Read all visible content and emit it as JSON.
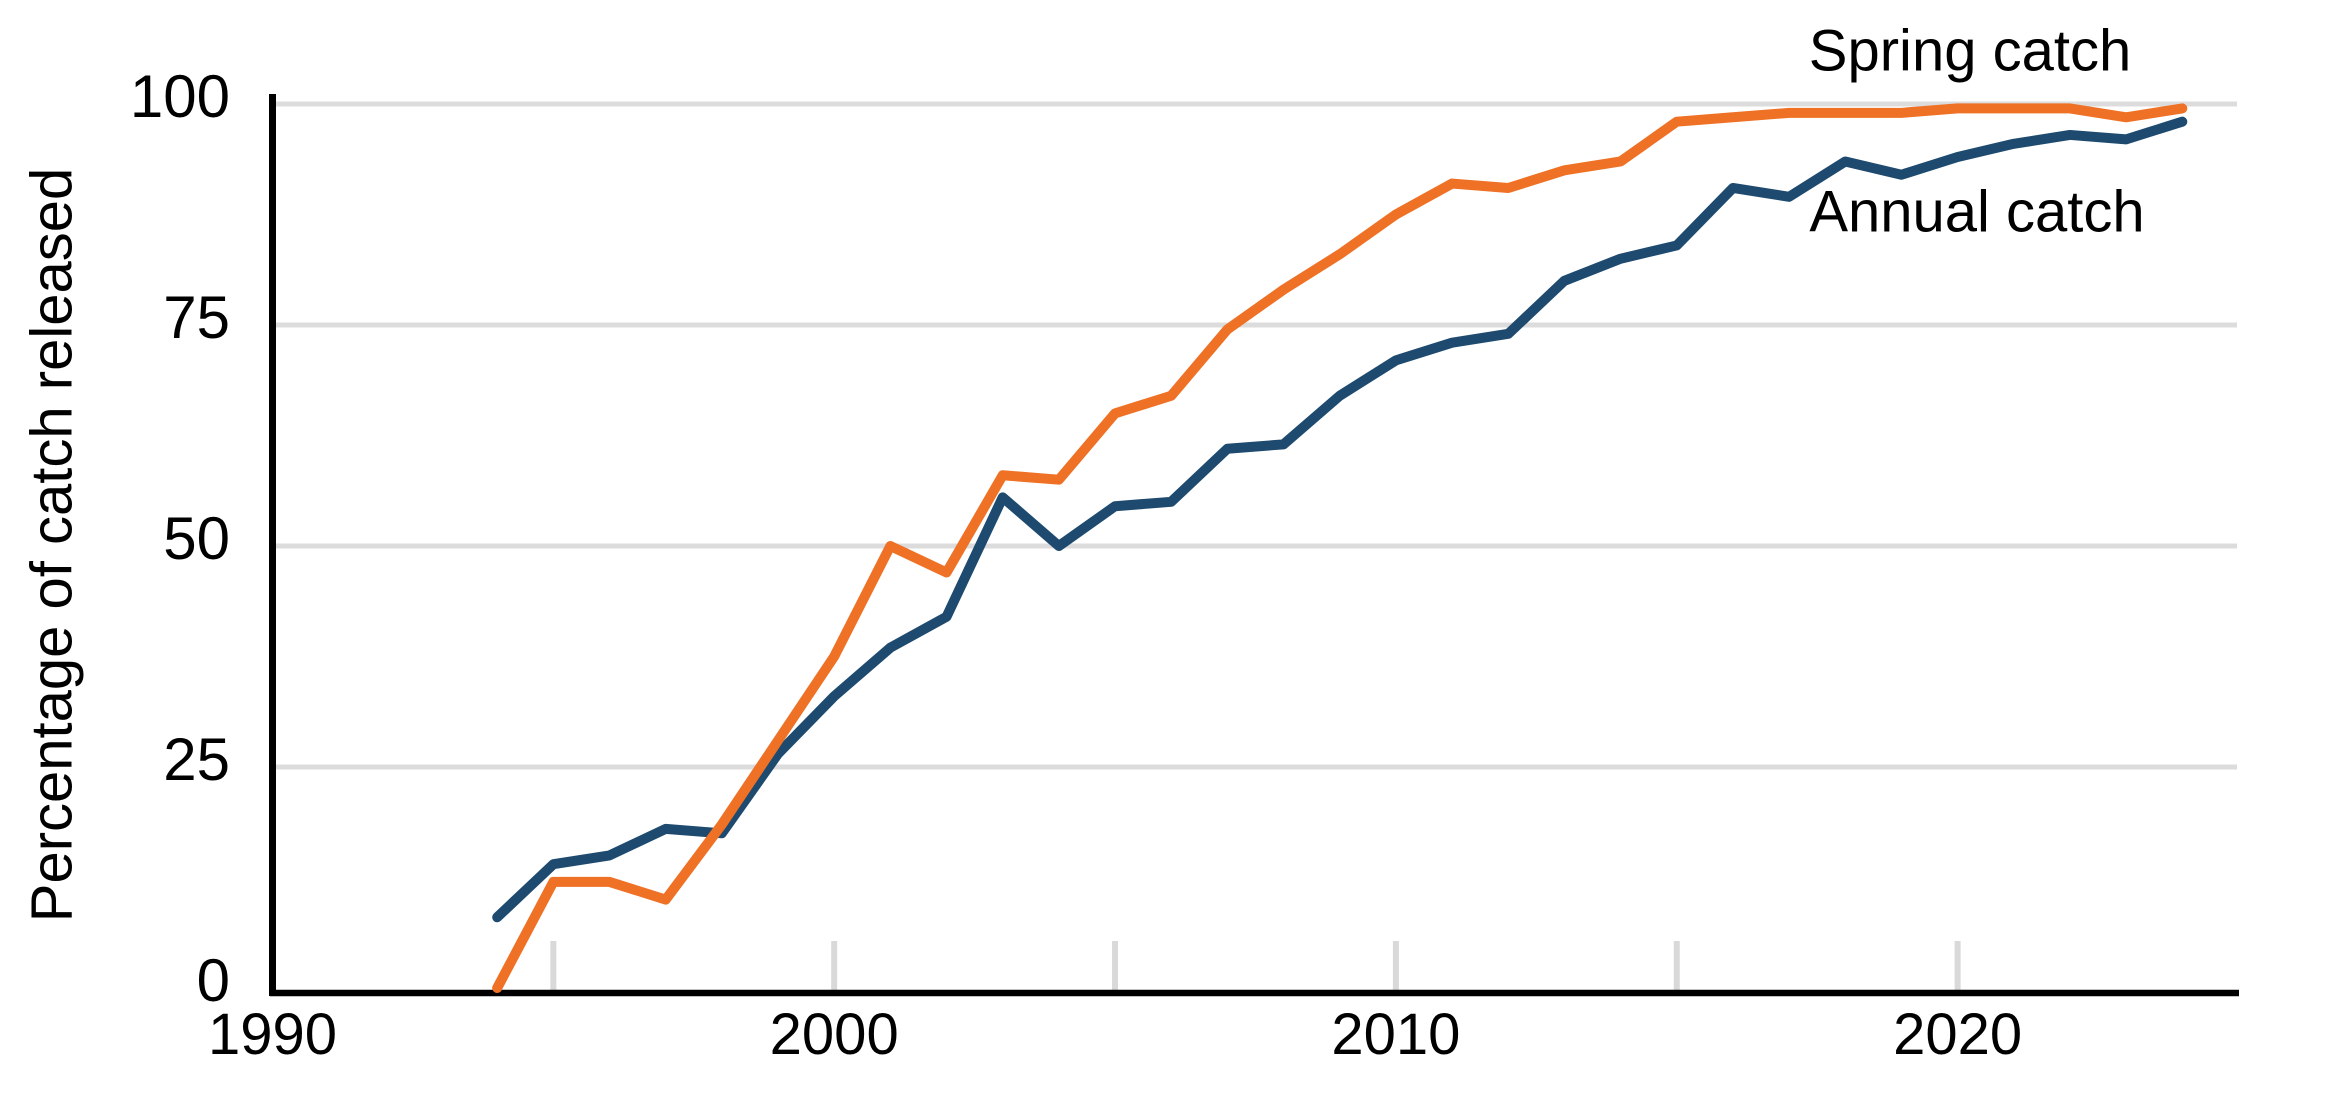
{
  "chart_data": {
    "type": "line",
    "title": "",
    "xlabel": "",
    "ylabel": "Percentage of catch released",
    "x": [
      1994,
      1995,
      1996,
      1997,
      1998,
      1999,
      2000,
      2001,
      2002,
      2003,
      2004,
      2005,
      2006,
      2007,
      2008,
      2009,
      2010,
      2011,
      2012,
      2013,
      2014,
      2015,
      2016,
      2017,
      2018,
      2019,
      2020,
      2021,
      2022,
      2023,
      2024
    ],
    "series": [
      {
        "name": "Spring catch",
        "color": "#ee7125",
        "values": [
          0,
          12,
          12,
          10,
          18.5,
          28,
          37.5,
          50,
          47,
          58,
          57.5,
          65,
          67,
          74.5,
          79,
          83,
          87.5,
          91,
          90.5,
          92.5,
          93.5,
          98,
          98.5,
          99,
          99,
          99,
          99.5,
          99.5,
          99.5,
          98.5,
          99.5
        ]
      },
      {
        "name": "Annual catch",
        "color": "#1d4a6e",
        "values": [
          8,
          14,
          15,
          18,
          17.5,
          26.5,
          33,
          38.5,
          42,
          55.5,
          50,
          54.5,
          55,
          61,
          61.5,
          67,
          71,
          73,
          74,
          80,
          82.5,
          84,
          90.5,
          89.5,
          93.5,
          92,
          94,
          95.5,
          96.5,
          96,
          98
        ]
      }
    ],
    "xlim": [
      1990,
      2025.1
    ],
    "ylim": [
      0,
      100
    ],
    "x_ticks": [
      1990,
      2000,
      2010,
      2020
    ],
    "x_minor_ticks": [
      1995,
      2000,
      2005,
      2010,
      2015,
      2020
    ],
    "y_ticks": [
      0,
      25,
      50,
      75,
      100
    ],
    "grid": "horizontal",
    "legend_position": "direct labels at line ends"
  },
  "colors": {
    "background": "#ffffff",
    "grid": "#dcdcdc",
    "tick": "#d9d9d9",
    "axis": "#000000",
    "text": "#000000",
    "spring_line": "#ee7125",
    "annual_line": "#1d4a6e"
  }
}
